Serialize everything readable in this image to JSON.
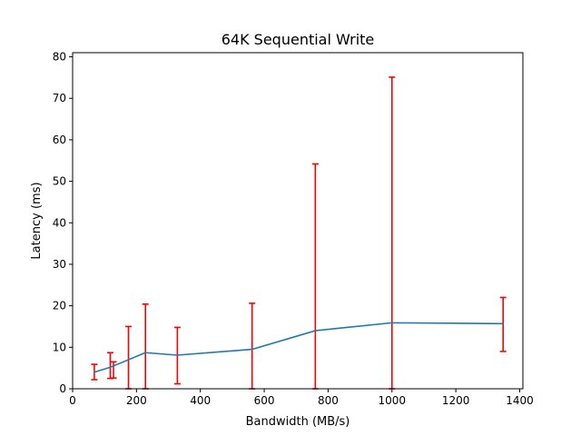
{
  "chart_data": {
    "type": "line",
    "title": "64K  Sequential Write",
    "xlabel": "Bandwidth (MB/s)",
    "ylabel": "Latency (ms)",
    "xlim": [
      0,
      1410
    ],
    "ylim": [
      0,
      81
    ],
    "xticks": [
      0,
      200,
      400,
      600,
      800,
      1000,
      1200,
      1400
    ],
    "yticks": [
      0,
      10,
      20,
      30,
      40,
      50,
      60,
      70,
      80
    ],
    "grid": false,
    "series": [
      {
        "name": "latency",
        "color": "#1f77b4",
        "x": [
          68,
          118,
          128,
          228,
          328,
          562,
          760,
          1000,
          1348
        ],
        "y": [
          4.0,
          5.2,
          5.5,
          8.7,
          8.1,
          9.5,
          14.0,
          15.9,
          15.7
        ]
      }
    ],
    "error_bars": {
      "color": "#ff0000",
      "items": [
        {
          "x": 68,
          "low": 2.2,
          "high": 5.9
        },
        {
          "x": 118,
          "low": 2.5,
          "high": 8.7
        },
        {
          "x": 128,
          "low": 2.6,
          "high": 6.5
        },
        {
          "x": 175,
          "low": 0.0,
          "high": 15.0
        },
        {
          "x": 228,
          "low": 0.0,
          "high": 20.4
        },
        {
          "x": 328,
          "low": 1.2,
          "high": 14.8
        },
        {
          "x": 562,
          "low": 0.0,
          "high": 20.6
        },
        {
          "x": 760,
          "low": 0.0,
          "high": 54.2
        },
        {
          "x": 1000,
          "low": 0.0,
          "high": 75.1
        },
        {
          "x": 1348,
          "low": 9.0,
          "high": 22.0
        }
      ]
    }
  }
}
